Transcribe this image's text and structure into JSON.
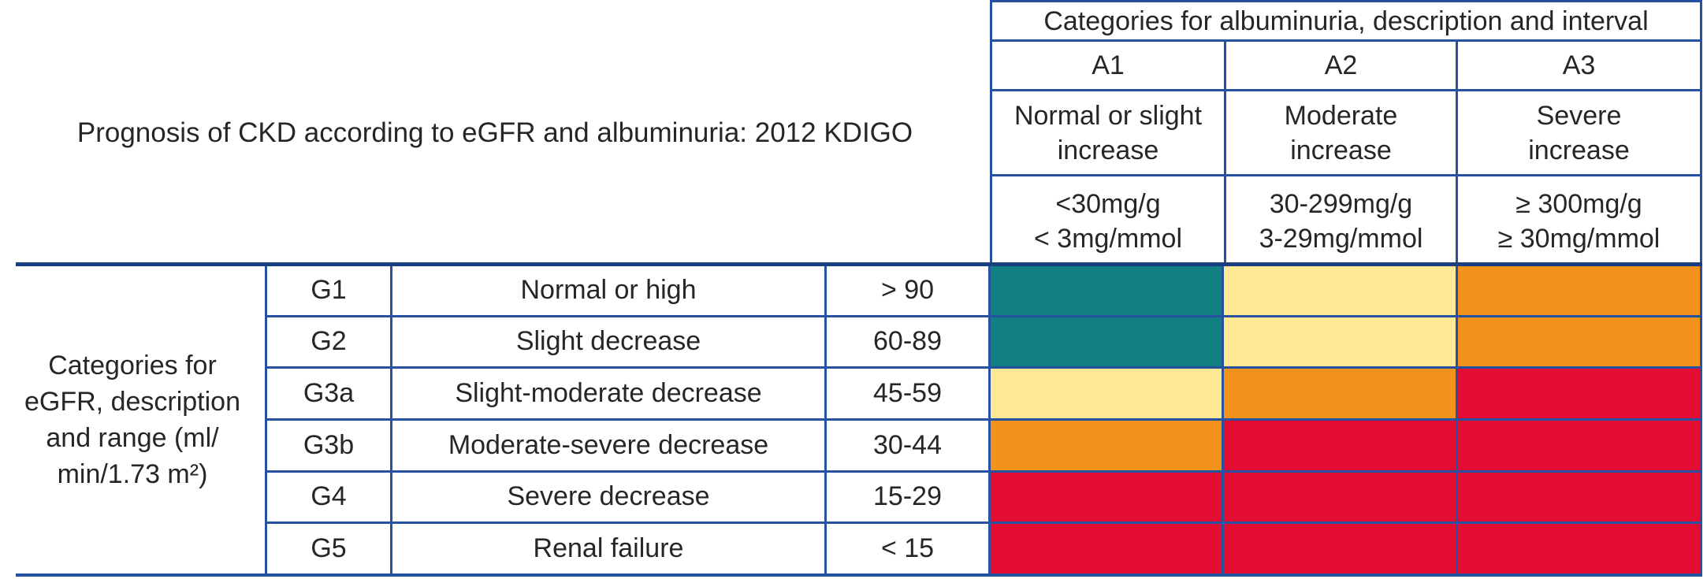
{
  "title": "Prognosis of CKD according to eGFR and albuminuria: 2012 KDIGO",
  "albuminuria": {
    "header": "Categories for albuminuria, description and interval",
    "columns": [
      {
        "code": "A1",
        "desc1": "Normal or slight",
        "desc2": "increase",
        "interval1": "<30mg/g",
        "interval2": "< 3mg/mmol"
      },
      {
        "code": "A2",
        "desc1": "Moderate",
        "desc2": "increase",
        "interval1": "30-299mg/g",
        "interval2": "3-29mg/mmol"
      },
      {
        "code": "A3",
        "desc1": "Severe",
        "desc2": "increase",
        "interval1": "≥ 300mg/g",
        "interval2": "≥ 30mg/mmol"
      }
    ]
  },
  "egfr": {
    "label_lines": [
      "Categories for",
      "eGFR, description",
      "and range (ml/",
      "min/1.73 m²)"
    ],
    "rows": [
      {
        "code": "G1",
        "description": "Normal or high",
        "range": "> 90",
        "cells": [
          "teal",
          "yellow",
          "orange"
        ]
      },
      {
        "code": "G2",
        "description": "Slight decrease",
        "range": "60-89",
        "cells": [
          "teal",
          "yellow",
          "orange"
        ]
      },
      {
        "code": "G3a",
        "description": "Slight-moderate decrease",
        "range": "45-59",
        "cells": [
          "yellow",
          "orange",
          "red"
        ]
      },
      {
        "code": "G3b",
        "description": "Moderate-severe decrease",
        "range": "30-44",
        "cells": [
          "orange",
          "red",
          "red"
        ]
      },
      {
        "code": "G4",
        "description": "Severe decrease",
        "range": "15-29",
        "cells": [
          "red",
          "red",
          "red"
        ]
      },
      {
        "code": "G5",
        "description": "Renal failure",
        "range": "< 15",
        "cells": [
          "red",
          "red",
          "red"
        ]
      }
    ]
  },
  "colors": {
    "teal": "#118083",
    "yellow": "#fde993",
    "orange": "#f2941c",
    "red": "#e30c33",
    "border": "#2551a0",
    "border_dark": "#1a3f80",
    "text": "#262626"
  },
  "chart_data": {
    "type": "heatmap",
    "title": "Prognosis of CKD according to eGFR and albuminuria: 2012 KDIGO",
    "x_axis_label": "Categories for albuminuria, description and interval",
    "x_categories": [
      "A1",
      "A2",
      "A3"
    ],
    "x_descriptions": [
      "Normal or slight increase",
      "Moderate increase",
      "Severe increase"
    ],
    "x_intervals": [
      "<30mg/g, < 3mg/mmol",
      "30-299mg/g, 3-29mg/mmol",
      "≥ 300mg/g, ≥ 30mg/mmol"
    ],
    "y_axis_label": "Categories for eGFR, description and range (ml/min/1.73 m²)",
    "y_categories": [
      "G1",
      "G2",
      "G3a",
      "G3b",
      "G4",
      "G5"
    ],
    "y_descriptions": [
      "Normal or high",
      "Slight decrease",
      "Slight-moderate decrease",
      "Moderate-severe decrease",
      "Severe decrease",
      "Renal failure"
    ],
    "y_ranges": [
      "> 90",
      "60-89",
      "45-59",
      "30-44",
      "15-29",
      "< 15"
    ],
    "cell_colors": [
      [
        "teal",
        "yellow",
        "orange"
      ],
      [
        "teal",
        "yellow",
        "orange"
      ],
      [
        "yellow",
        "orange",
        "red"
      ],
      [
        "orange",
        "red",
        "red"
      ],
      [
        "red",
        "red",
        "red"
      ],
      [
        "red",
        "red",
        "red"
      ]
    ],
    "palette": {
      "teal": "#118083",
      "yellow": "#fde993",
      "orange": "#f2941c",
      "red": "#e30c33"
    },
    "legend_position": "none",
    "grid": true
  }
}
